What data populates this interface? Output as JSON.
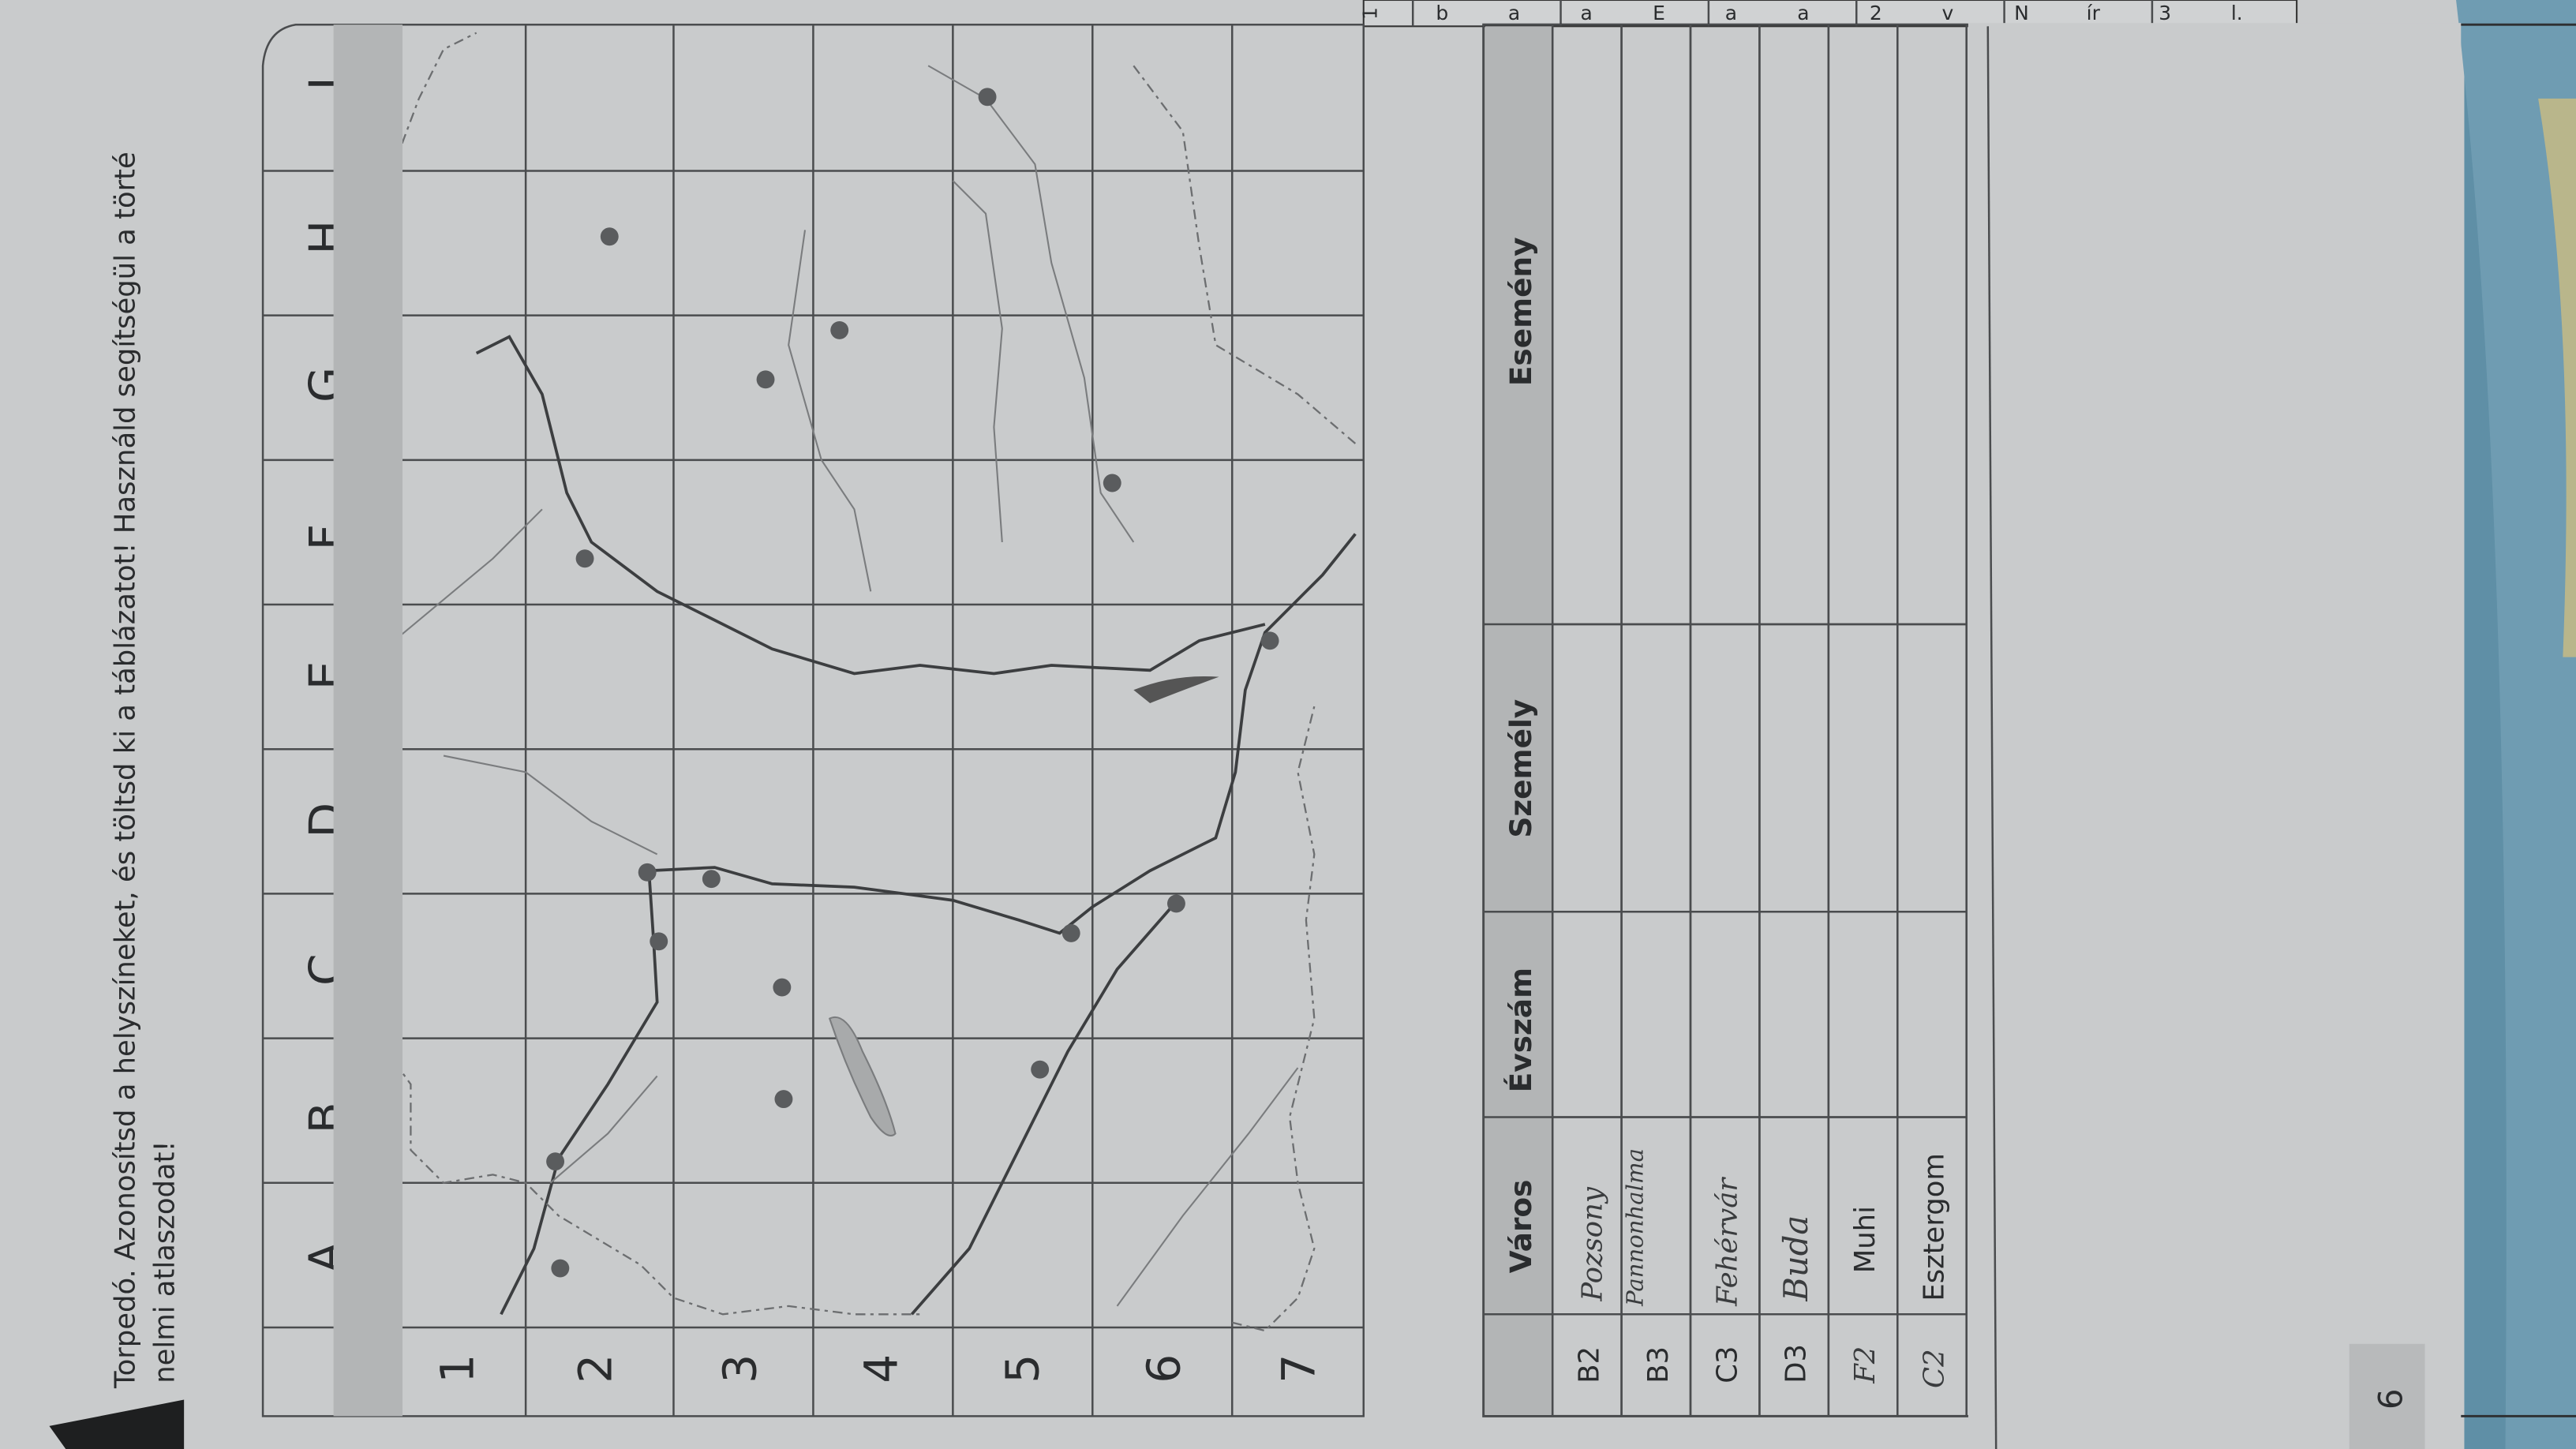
{
  "exercise": {
    "line1": "Torpedó. Azonosítsd a helyszíneket, és töltsd ki a táblázatot! Használd segítségül a törté",
    "line2": "nelmi atlaszodat!"
  },
  "map": {
    "columns": [
      "A",
      "B",
      "C",
      "D",
      "E",
      "F",
      "G",
      "H",
      "I"
    ],
    "rows": [
      "1",
      "2",
      "3",
      "4",
      "5",
      "6",
      "7"
    ]
  },
  "table": {
    "headers": [
      "",
      "Város",
      "Évszám",
      "Személy",
      "Esemény"
    ],
    "rows": [
      {
        "cell": "B2",
        "city": "Pozsony"
      },
      {
        "cell": "B3",
        "city": "Pannonhalma"
      },
      {
        "cell": "C3",
        "city": "Fehérvár"
      },
      {
        "cell": "D3",
        "city": "Buda"
      },
      {
        "cell": "F2",
        "city": "Muhi"
      },
      {
        "cell": "C2",
        "city": "Esztergom"
      }
    ]
  },
  "page_number": "6",
  "facing_page_fragments": [
    "1",
    "b",
    "a",
    "a",
    "E",
    "a",
    "a",
    "2",
    "v",
    "N",
    "ír",
    "3",
    "l."
  ],
  "colors": {
    "paper": "#c9cbcc",
    "ink": "#2a2c2e",
    "header_fill": "#b3b5b6",
    "desk": "#5f8fa6"
  }
}
